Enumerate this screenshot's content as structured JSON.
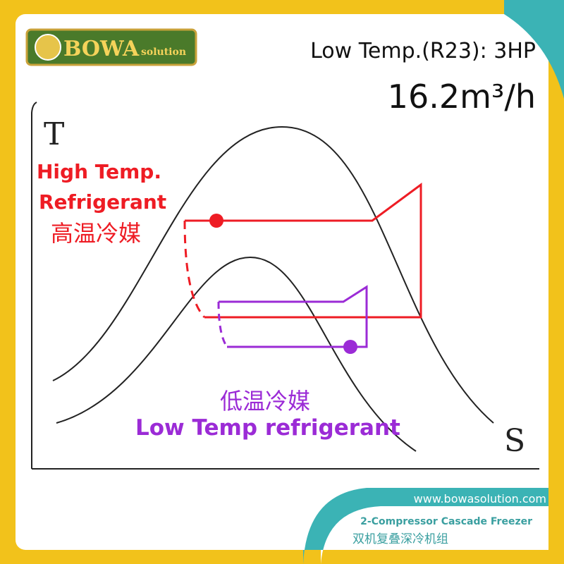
{
  "logo": {
    "brand": "BOWA",
    "suffix": "solution"
  },
  "header": {
    "spec": "Low Temp.(R23): 3HP",
    "flow": "16.2m³/h"
  },
  "diagram": {
    "y_axis": "T",
    "x_axis": "S",
    "high_temp": {
      "line1": "High Temp.",
      "line2": "Refrigerant",
      "chinese": "高温冷媒"
    },
    "low_temp": {
      "chinese": "低温冷媒",
      "english": "Low Temp refrigerant"
    }
  },
  "footer": {
    "website": "www.bowasolution.com",
    "product": "2-Compressor Cascade Freezer",
    "product_chinese": "双机复叠深冷机组"
  }
}
